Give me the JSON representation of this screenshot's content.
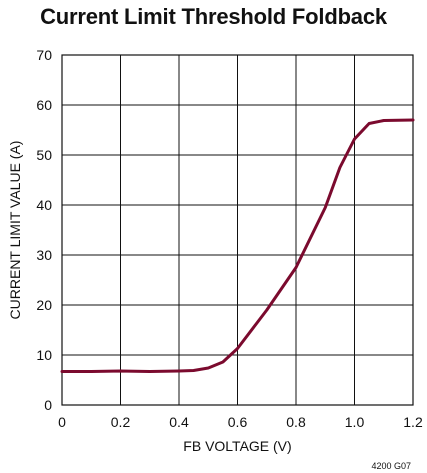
{
  "chart_data": {
    "type": "line",
    "title": "Current Limit Threshold Foldback",
    "xlabel": "FB VOLTAGE (V)",
    "ylabel": "CURRENT LIMIT VALUE (A)",
    "xlim": [
      0,
      1.2
    ],
    "ylim": [
      0,
      70
    ],
    "xticks": [
      0,
      0.2,
      0.4,
      0.6,
      0.8,
      1.0,
      1.2
    ],
    "xtick_labels": [
      "0",
      "0.2",
      "0.4",
      "0.6",
      "0.8",
      "1.0",
      "1.2"
    ],
    "yticks": [
      0,
      10,
      20,
      30,
      40,
      50,
      60,
      70
    ],
    "ytick_labels": [
      "0",
      "10",
      "20",
      "30",
      "40",
      "50",
      "60",
      "70"
    ],
    "grid": true,
    "series": [
      {
        "color": "#7b0a2e",
        "x": [
          0,
          0.1,
          0.2,
          0.3,
          0.4,
          0.45,
          0.5,
          0.55,
          0.6,
          0.7,
          0.8,
          0.9,
          0.95,
          1.0,
          1.05,
          1.1,
          1.2
        ],
        "y": [
          6.7,
          6.7,
          6.8,
          6.7,
          6.8,
          6.9,
          7.4,
          8.6,
          11.3,
          19.0,
          27.5,
          39.5,
          47.5,
          53.2,
          56.3,
          56.9,
          57.0
        ]
      }
    ],
    "figure_id": "4200 G07"
  }
}
